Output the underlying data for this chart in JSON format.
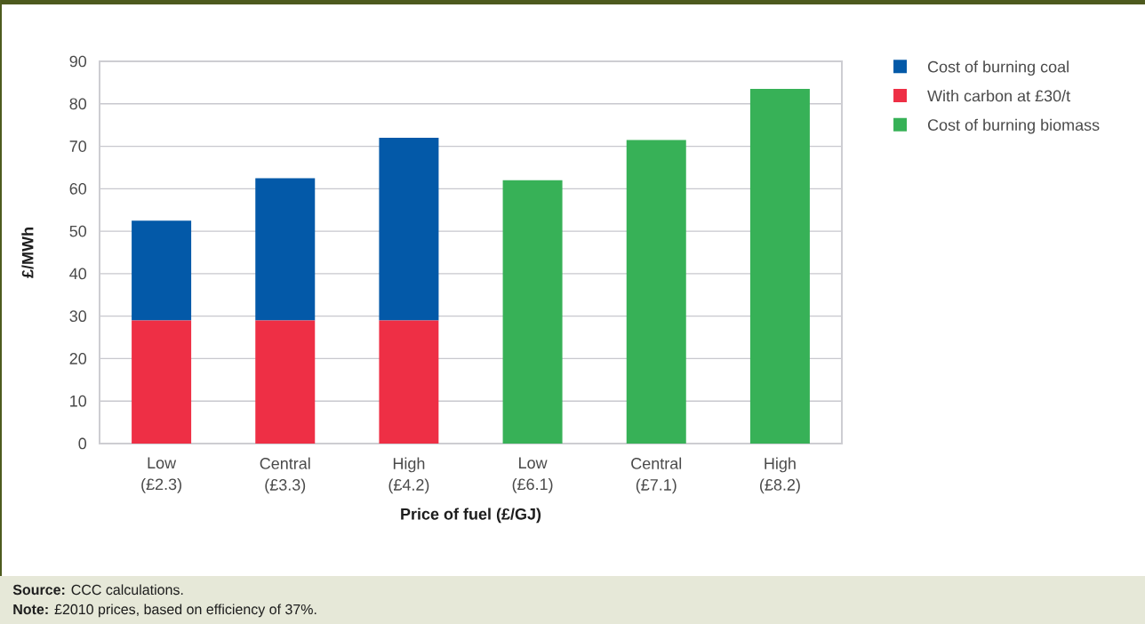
{
  "chart_data": {
    "type": "bar",
    "stacked": true,
    "categories": [
      "Low (£2.3)",
      "Central (£3.3)",
      "High (£4.2)",
      "Low (£6.1)",
      "Central (£7.1)",
      "High (£8.2)"
    ],
    "series": [
      {
        "name": "With carbon at £30/t",
        "color": "#ee2f45",
        "values": [
          29,
          29,
          29,
          null,
          null,
          null
        ]
      },
      {
        "name": "Cost of burning coal",
        "color": "#0359a8",
        "values": [
          23.5,
          33.5,
          43,
          null,
          null,
          null
        ]
      },
      {
        "name": "Cost of burning biomass",
        "color": "#37b157",
        "values": [
          null,
          null,
          null,
          62,
          71.5,
          83.5
        ]
      }
    ],
    "xlabel": "Price of fuel (£/GJ)",
    "ylabel": "£/MWh",
    "ylim": [
      0,
      90
    ],
    "yticks": [
      0,
      10,
      20,
      30,
      40,
      50,
      60,
      70,
      80,
      90
    ],
    "grid": "y",
    "legend": "right",
    "annotations": [
      "**Source:** CCC calculations.",
      "**Note:** £2010 prices, based on efficiency of 37%."
    ]
  }
}
